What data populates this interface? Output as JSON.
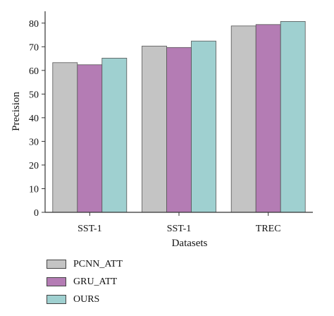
{
  "chart_data": {
    "type": "bar",
    "categories": [
      "SST-1",
      "SST-1",
      "TREC"
    ],
    "series": [
      {
        "name": "PCNN_ATT",
        "values": [
          63.3,
          70.3,
          78.8
        ],
        "color": "#c4c4c4"
      },
      {
        "name": "GRU_ATT",
        "values": [
          62.4,
          69.7,
          79.4
        ],
        "color": "#b47cb4"
      },
      {
        "name": "OURS",
        "values": [
          65.2,
          72.4,
          80.7
        ],
        "color": "#9fd0d0"
      }
    ],
    "xlabel": "Datasets",
    "ylabel": "Precision",
    "ylim": [
      0,
      85
    ],
    "yticks": [
      "0",
      "10",
      "20",
      "30",
      "40",
      "50",
      "60",
      "70",
      "80"
    ],
    "grid": false,
    "legend_position": "bottom-left"
  }
}
